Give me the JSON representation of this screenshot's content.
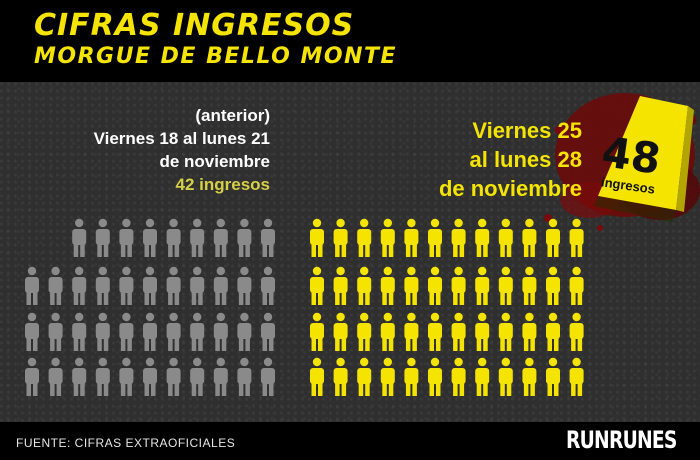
{
  "header": {
    "title": "CIFRAS INGRESOS",
    "subtitle": "MORGUE DE BELLO MONTE"
  },
  "previous": {
    "label_line1": "(anterior)",
    "label_line2": "Viernes 18 al lunes 21",
    "label_line3": "de noviembre",
    "count_label": "42 ingresos"
  },
  "current": {
    "label_line1": "Viernes 25",
    "label_line2": "al lunes 28",
    "label_line3": "de noviembre"
  },
  "marker": {
    "number": "48",
    "word": "ingresos"
  },
  "footer": {
    "source": "FUENTE: CIFRAS EXTRAOFICIALES",
    "brand": "RUNRUNES"
  },
  "colors": {
    "accent_yellow": "#f5e400",
    "figure_gray": "#8a8a8a",
    "background": "#2f2f2f",
    "blood": "#7a0a0a"
  },
  "chart_data": {
    "type": "pictogram",
    "categories": [
      "Viernes 18 al lunes 21 de noviembre",
      "Viernes 25 al lunes 28 de noviembre"
    ],
    "values": [
      42,
      48
    ],
    "unit": "ingresos"
  }
}
